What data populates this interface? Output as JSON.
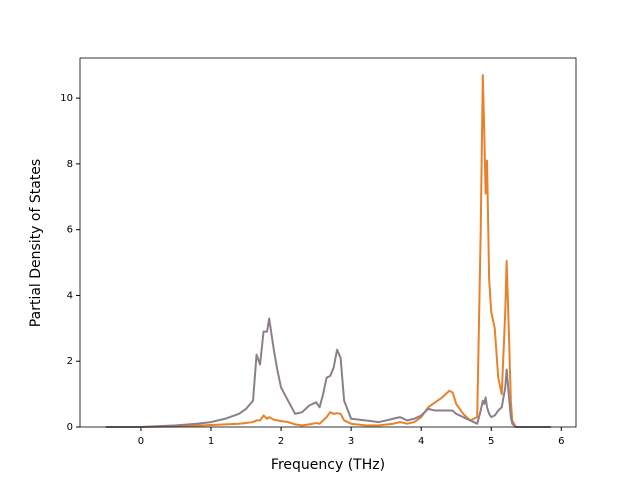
{
  "chart_data": {
    "type": "line",
    "xlabel": "Frequency (THz)",
    "ylabel": "Partial Density of States",
    "x": [
      -0.5,
      0,
      0.5,
      0.8,
      1.0,
      1.2,
      1.4,
      1.5,
      1.6,
      1.65,
      1.7,
      1.75,
      1.8,
      1.83,
      1.9,
      1.95,
      2.0,
      2.1,
      2.2,
      2.3,
      2.4,
      2.5,
      2.55,
      2.6,
      2.65,
      2.7,
      2.75,
      2.8,
      2.85,
      2.9,
      3.0,
      3.2,
      3.4,
      3.6,
      3.7,
      3.8,
      3.9,
      4.0,
      4.1,
      4.2,
      4.3,
      4.4,
      4.45,
      4.5,
      4.6,
      4.7,
      4.8,
      4.85,
      4.88,
      4.9,
      4.92,
      4.94,
      4.97,
      5.0,
      5.05,
      5.1,
      5.15,
      5.2,
      5.22,
      5.25,
      5.28,
      5.3,
      5.35,
      5.5,
      5.85
    ],
    "series": [
      {
        "color": "#e8822a",
        "values": [
          0,
          0,
          0.02,
          0.04,
          0.06,
          0.08,
          0.1,
          0.12,
          0.15,
          0.2,
          0.2,
          0.35,
          0.25,
          0.3,
          0.22,
          0.2,
          0.18,
          0.15,
          0.08,
          0.05,
          0.08,
          0.12,
          0.1,
          0.2,
          0.3,
          0.45,
          0.4,
          0.42,
          0.4,
          0.2,
          0.1,
          0.05,
          0.05,
          0.1,
          0.15,
          0.1,
          0.15,
          0.3,
          0.6,
          0.75,
          0.9,
          1.1,
          1.05,
          0.7,
          0.4,
          0.2,
          0.3,
          6.0,
          10.7,
          9.0,
          7.1,
          8.1,
          4.5,
          3.5,
          3.0,
          1.5,
          1.0,
          3.5,
          5.05,
          3.0,
          0.8,
          0.2,
          0,
          0,
          0
        ]
      },
      {
        "color": "#8c7f8a",
        "values": [
          0,
          0,
          0.05,
          0.1,
          0.15,
          0.25,
          0.4,
          0.55,
          0.8,
          2.2,
          1.9,
          2.9,
          2.9,
          3.3,
          2.3,
          1.7,
          1.2,
          0.8,
          0.4,
          0.45,
          0.65,
          0.75,
          0.6,
          1.0,
          1.5,
          1.55,
          1.8,
          2.35,
          2.1,
          0.8,
          0.25,
          0.2,
          0.15,
          0.25,
          0.3,
          0.2,
          0.25,
          0.35,
          0.55,
          0.5,
          0.5,
          0.5,
          0.5,
          0.4,
          0.3,
          0.2,
          0.1,
          0.5,
          0.8,
          0.7,
          0.9,
          0.6,
          0.4,
          0.3,
          0.35,
          0.5,
          0.6,
          1.2,
          1.75,
          1.0,
          0.3,
          0.1,
          0,
          0,
          0
        ]
      }
    ],
    "xlim": [
      -0.87,
      6.21
    ],
    "ylim": [
      0,
      11.22
    ],
    "xticks": [
      0,
      1,
      2,
      3,
      4,
      5,
      6
    ],
    "yticks": [
      0,
      2,
      4,
      6,
      8,
      10
    ]
  }
}
